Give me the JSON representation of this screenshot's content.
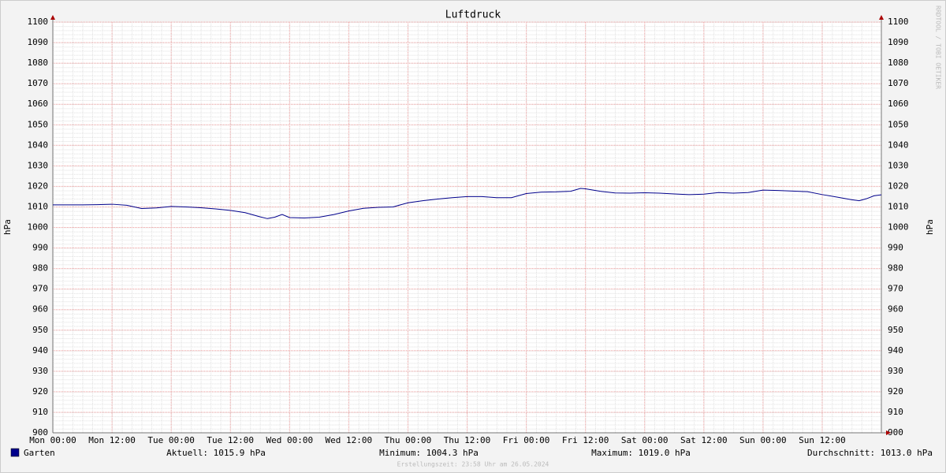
{
  "chart_data": {
    "type": "line",
    "title": "Luftdruck",
    "y_label": "hPa",
    "y2_label": "hPa",
    "x": [
      0,
      3,
      6,
      9,
      12,
      15,
      18,
      21,
      24,
      27,
      30,
      33,
      36,
      39,
      42,
      43.5,
      45,
      46.5,
      48,
      51,
      54,
      57,
      60,
      63,
      66,
      69,
      72,
      75,
      78,
      81,
      84,
      87,
      90,
      93,
      96,
      99,
      102,
      105,
      107,
      108,
      111,
      114,
      117,
      120,
      123,
      126,
      129,
      132,
      135,
      138,
      141,
      144,
      147,
      150,
      153,
      156,
      159,
      162,
      163.5,
      165,
      166.5,
      168
    ],
    "series": [
      {
        "name": "Garten",
        "color": "#00008b",
        "values": [
          1011,
          1011,
          1011,
          1011.1,
          1011.3,
          1010.8,
          1009.2,
          1009.5,
          1010.2,
          1010,
          1009.6,
          1009,
          1008.3,
          1007.2,
          1005.2,
          1004.3,
          1005,
          1006.3,
          1004.8,
          1004.6,
          1005,
          1006.3,
          1008,
          1009.3,
          1009.8,
          1010,
          1012,
          1013,
          1013.8,
          1014.5,
          1015,
          1015,
          1014.5,
          1014.5,
          1016.5,
          1017.2,
          1017.3,
          1017.6,
          1019,
          1018.8,
          1017.6,
          1016.8,
          1016.7,
          1016.9,
          1016.7,
          1016.3,
          1016,
          1016.2,
          1017,
          1016.7,
          1017,
          1018.2,
          1018,
          1017.7,
          1017.4,
          1016,
          1014.8,
          1013.5,
          1013,
          1014,
          1015.4,
          1015.9
        ]
      }
    ],
    "xlim": [
      0,
      168
    ],
    "xticks": [
      {
        "value": 0,
        "label": "Mon 00:00"
      },
      {
        "value": 12,
        "label": "Mon 12:00"
      },
      {
        "value": 24,
        "label": "Tue 00:00"
      },
      {
        "value": 36,
        "label": "Tue 12:00"
      },
      {
        "value": 48,
        "label": "Wed 00:00"
      },
      {
        "value": 60,
        "label": "Wed 12:00"
      },
      {
        "value": 72,
        "label": "Thu 00:00"
      },
      {
        "value": 84,
        "label": "Thu 12:00"
      },
      {
        "value": 96,
        "label": "Fri 00:00"
      },
      {
        "value": 108,
        "label": "Fri 12:00"
      },
      {
        "value": 120,
        "label": "Sat 00:00"
      },
      {
        "value": 132,
        "label": "Sat 12:00"
      },
      {
        "value": 144,
        "label": "Sun 00:00"
      },
      {
        "value": 156,
        "label": "Sun 12:00"
      }
    ],
    "ylim": [
      900,
      1100
    ],
    "yticks": [
      900,
      910,
      920,
      930,
      940,
      950,
      960,
      970,
      980,
      990,
      1000,
      1010,
      1020,
      1030,
      1040,
      1050,
      1060,
      1070,
      1080,
      1090,
      1100
    ],
    "grid": true,
    "stats": [
      "Aktuell: 1015.9 hPa",
      "Minimum: 1004.3 hPa",
      "Maximum: 1019.0 hPa",
      "Durchschnitt: 1013.0 hPa"
    ],
    "footer": "Erstellungszeit: 23:58 Uhr am 26.05.2024",
    "watermark": "RRDTOOL / TOBI OETIKER"
  }
}
